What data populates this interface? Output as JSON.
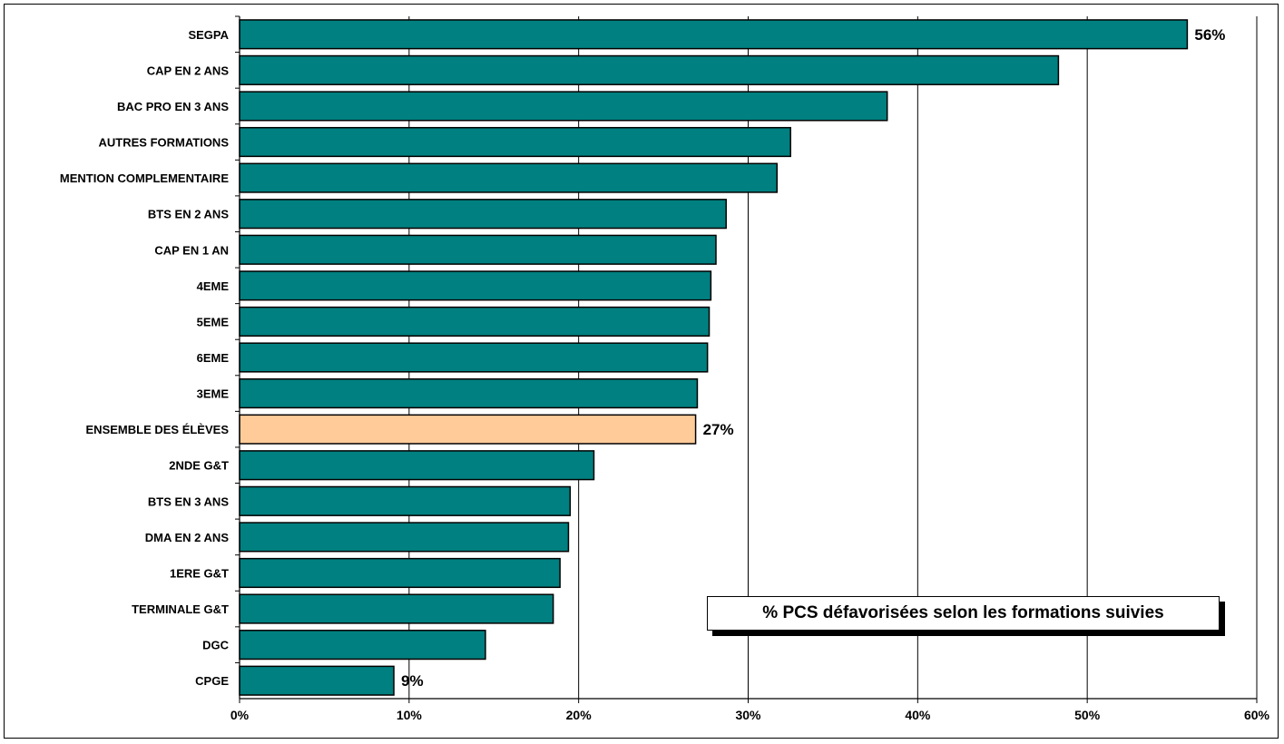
{
  "chart_data": {
    "type": "bar",
    "orientation": "horizontal",
    "title": "% PCS défavorisées selon les formations suivies",
    "categories": [
      "SEGPA",
      "CAP EN 2 ANS",
      "BAC PRO EN 3 ANS",
      "AUTRES FORMATIONS",
      "MENTION COMPLEMENTAIRE",
      "BTS EN 2 ANS",
      "CAP EN 1 AN",
      "4EME",
      "5EME",
      "6EME",
      "3EME",
      "ENSEMBLE DES ÉLÈVES",
      "2NDE G&T",
      "BTS  EN 3 ANS",
      "DMA EN 2 ANS",
      "1ERE G&T",
      "TERMINALE G&T",
      "DGC",
      "CPGE"
    ],
    "values": [
      55.9,
      48.3,
      38.2,
      32.5,
      31.7,
      28.7,
      28.1,
      27.8,
      27.7,
      27.6,
      27.0,
      26.9,
      20.9,
      19.5,
      19.4,
      18.9,
      18.5,
      14.5,
      9.1
    ],
    "highlight_index": 11,
    "data_labels": [
      {
        "index": 0,
        "text": "56%"
      },
      {
        "index": 11,
        "text": "27%"
      },
      {
        "index": 18,
        "text": "9%"
      }
    ],
    "x_ticks": [
      "0%",
      "10%",
      "20%",
      "30%",
      "40%",
      "50%",
      "60%"
    ],
    "xlim": [
      0,
      60
    ],
    "grid": true,
    "colors": {
      "bar": "#008080",
      "highlight_bar": "#ffcc99",
      "bar_stroke": "#000000",
      "grid": "#000000"
    },
    "legend_placement": "bottom-right inside plot"
  }
}
